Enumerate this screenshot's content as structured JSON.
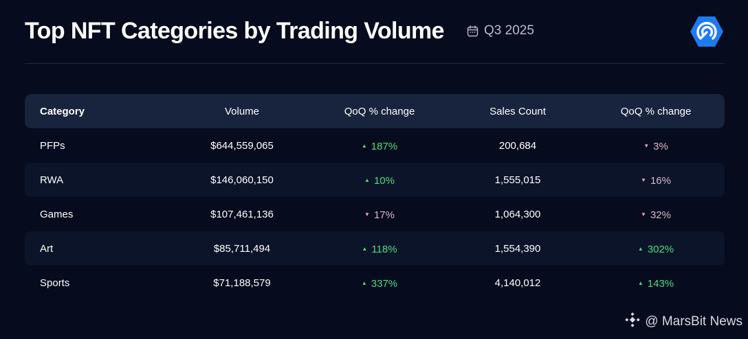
{
  "header": {
    "title": "Top NFT Categories by Trading Volume",
    "period": "Q3 2025"
  },
  "icons": {
    "calendar": "calendar-icon",
    "logo": "nansen-style-logo",
    "watermark": "binance-diamond-icon"
  },
  "colors": {
    "background": "#060b1d",
    "header_row": "#18233d",
    "up": "#4ade80",
    "down": "#f1a6c3",
    "logo": "#1d7bf2"
  },
  "chart_data": {
    "type": "table",
    "columns": [
      "Category",
      "Volume",
      "QoQ % change",
      "Sales Count",
      "QoQ % change"
    ],
    "rows": [
      {
        "category": "PFPs",
        "volume": "$644,559,065",
        "volume_qoq": "187%",
        "volume_dir": "up",
        "sales": "200,684",
        "sales_qoq": "3%",
        "sales_dir": "down"
      },
      {
        "category": "RWA",
        "volume": "$146,060,150",
        "volume_qoq": "10%",
        "volume_dir": "up",
        "sales": "1,555,015",
        "sales_qoq": "16%",
        "sales_dir": "down"
      },
      {
        "category": "Games",
        "volume": "$107,461,136",
        "volume_qoq": "17%",
        "volume_dir": "down",
        "sales": "1,064,300",
        "sales_qoq": "32%",
        "sales_dir": "down"
      },
      {
        "category": "Art",
        "volume": "$85,711,494",
        "volume_qoq": "118%",
        "volume_dir": "up",
        "sales": "1,554,390",
        "sales_qoq": "302%",
        "sales_dir": "up"
      },
      {
        "category": "Sports",
        "volume": "$71,188,579",
        "volume_qoq": "337%",
        "volume_dir": "up",
        "sales": "4,140,012",
        "sales_qoq": "143%",
        "sales_dir": "up"
      }
    ]
  },
  "watermark": {
    "text": "@ MarsBit News"
  }
}
